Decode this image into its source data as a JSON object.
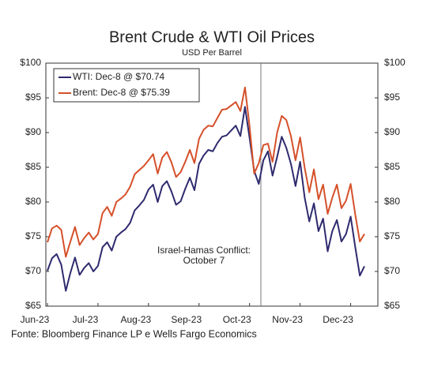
{
  "chart_data": {
    "type": "line",
    "title": "Brent Crude & WTI Oil Prices",
    "subtitle": "USD Per Barrel",
    "source": "Fonte: Bloomberg Finance LP e Wells Fargo Economics",
    "annotation": [
      "Israel-Hamas Conflict:",
      "October 7"
    ],
    "categories": [
      "Jun-23",
      null,
      null,
      null,
      null,
      null,
      null,
      null,
      null,
      null,
      null,
      "Jul-23",
      null,
      null,
      null,
      null,
      null,
      null,
      null,
      null,
      null,
      null,
      "Aug-23",
      null,
      null,
      null,
      null,
      null,
      null,
      null,
      null,
      null,
      null,
      "Sep-23",
      null,
      null,
      null,
      null,
      null,
      null,
      null,
      null,
      null,
      null,
      "Oct-23",
      null,
      null,
      null,
      null,
      null,
      null,
      null,
      null,
      null,
      null,
      "Nov-23",
      null,
      null,
      null,
      null,
      null,
      null,
      null,
      null,
      null,
      null,
      "Dec-23",
      null,
      null,
      null
    ],
    "series": [
      {
        "name": "WTI: Dec-8 @ $70.74",
        "color": "#2e2b6e",
        "values": [
          70.1,
          71.9,
          72.5,
          71.0,
          67.2,
          69.8,
          72.0,
          69.5,
          70.5,
          71.2,
          70.0,
          70.8,
          73.5,
          74.2,
          73.0,
          75.0,
          75.6,
          76.1,
          77.0,
          78.8,
          79.5,
          80.3,
          81.8,
          82.5,
          80.0,
          82.3,
          83.0,
          81.5,
          79.6,
          80.1,
          81.9,
          83.5,
          81.7,
          85.5,
          86.7,
          87.5,
          87.3,
          88.5,
          89.4,
          89.6,
          90.3,
          91.0,
          89.5,
          93.7,
          89.2,
          84.5,
          82.6,
          86.0,
          87.3,
          83.8,
          86.5,
          89.4,
          87.8,
          85.5,
          82.3,
          85.8,
          80.6,
          77.2,
          79.8,
          75.8,
          77.6,
          72.9,
          75.8,
          77.4,
          74.3,
          75.4,
          77.9,
          73.5,
          69.4,
          70.74
        ]
      },
      {
        "name": "Brent: Dec-8 @ $75.39",
        "color": "#d5502a",
        "values": [
          74.2,
          76.2,
          76.6,
          76.0,
          72.1,
          74.3,
          76.4,
          73.8,
          74.8,
          75.6,
          74.6,
          75.4,
          78.4,
          79.3,
          78.0,
          80.0,
          80.5,
          81.1,
          82.2,
          84.0,
          84.6,
          85.2,
          86.0,
          86.9,
          84.1,
          86.4,
          87.2,
          85.7,
          83.6,
          84.3,
          85.8,
          87.5,
          85.6,
          89.1,
          90.4,
          91.0,
          90.9,
          92.1,
          93.3,
          93.4,
          93.9,
          94.4,
          93.1,
          96.5,
          90.9,
          84.1,
          85.6,
          88.2,
          88.4,
          85.8,
          90.0,
          92.4,
          91.8,
          89.5,
          86.0,
          89.3,
          84.9,
          81.4,
          84.7,
          80.4,
          82.5,
          78.3,
          80.6,
          82.5,
          79.1,
          80.2,
          82.6,
          78.2,
          74.3,
          75.39
        ]
      }
    ],
    "ylim": [
      65,
      100
    ],
    "yticks": [
      {
        "value": 65,
        "label": "$65"
      },
      {
        "value": 70,
        "label": "$70"
      },
      {
        "value": 75,
        "label": "$75"
      },
      {
        "value": 80,
        "label": "$80"
      },
      {
        "value": 85,
        "label": "$85"
      },
      {
        "value": 90,
        "label": "$90"
      },
      {
        "value": 95,
        "label": "$95"
      },
      {
        "value": 100,
        "label": "$100"
      }
    ],
    "y2lim": [
      65,
      100
    ],
    "y2ticks": [
      {
        "value": 65,
        "label": "$65"
      },
      {
        "value": 70,
        "label": "$70"
      },
      {
        "value": 75,
        "label": "$75"
      },
      {
        "value": 80,
        "label": "$80"
      },
      {
        "value": 85,
        "label": "$85"
      },
      {
        "value": 90,
        "label": "$90"
      },
      {
        "value": 95,
        "label": "$95"
      },
      {
        "value": 100,
        "label": "$100"
      }
    ],
    "grid": false,
    "legend": "top-left"
  }
}
